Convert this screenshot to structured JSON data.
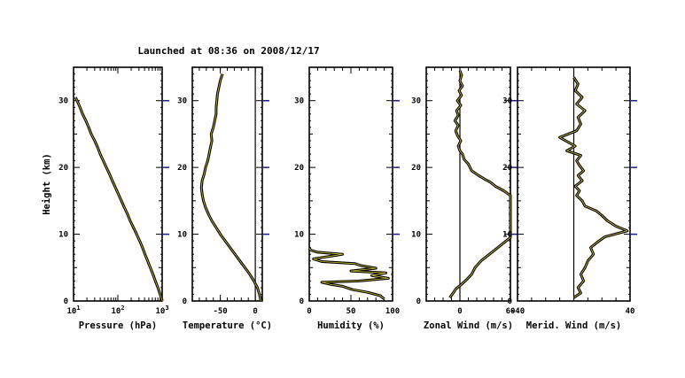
{
  "title": "Launched at 08:36  on  2008/12/17",
  "colors": {
    "axes": "#000000",
    "profile_outline": "#000000",
    "profile_highlight": "#d6c82a",
    "height_tick": "#1a1a8c",
    "background": "#ffffff"
  },
  "chart_data": [
    {
      "id": "pressure",
      "type": "line",
      "xlabel": "Pressure (hPa)",
      "ylabel": "Height (km)",
      "xscale": "log",
      "xlim": [
        10,
        1000
      ],
      "ylim": [
        0,
        35
      ],
      "xticks": [
        {
          "v": 10,
          "base": "10",
          "exp": "1"
        },
        {
          "v": 100,
          "base": "10",
          "exp": "2"
        },
        {
          "v": 1000,
          "base": "10",
          "exp": "3"
        }
      ],
      "yticks": [
        0,
        10,
        20,
        30
      ],
      "vline": null,
      "points": [
        [
          1013,
          0
        ],
        [
          900,
          1
        ],
        [
          800,
          2
        ],
        [
          700,
          3
        ],
        [
          620,
          4
        ],
        [
          540,
          5
        ],
        [
          470,
          6
        ],
        [
          410,
          7
        ],
        [
          360,
          8
        ],
        [
          310,
          9
        ],
        [
          265,
          10
        ],
        [
          225,
          11
        ],
        [
          190,
          12
        ],
        [
          165,
          13
        ],
        [
          140,
          14
        ],
        [
          120,
          15
        ],
        [
          103,
          16
        ],
        [
          88,
          17
        ],
        [
          75,
          18
        ],
        [
          65,
          19
        ],
        [
          55,
          20
        ],
        [
          47,
          21
        ],
        [
          40,
          22
        ],
        [
          35,
          23
        ],
        [
          30,
          24
        ],
        [
          25,
          25
        ],
        [
          22,
          26
        ],
        [
          19,
          27
        ],
        [
          16,
          28
        ],
        [
          14,
          29
        ],
        [
          12,
          30
        ],
        [
          11,
          30.5
        ]
      ]
    },
    {
      "id": "temperature",
      "type": "line",
      "xlabel": "Temperature (°C)",
      "xlim": [
        -90,
        10
      ],
      "ylim": [
        0,
        35
      ],
      "xticks": [
        {
          "v": -50,
          "label": "-50"
        },
        {
          "v": 0,
          "label": "0"
        }
      ],
      "yticks": [
        0,
        10,
        20,
        30
      ],
      "vline": 0,
      "points": [
        [
          8,
          0
        ],
        [
          6,
          1
        ],
        [
          3,
          2
        ],
        [
          -2,
          3
        ],
        [
          -8,
          4
        ],
        [
          -15,
          5
        ],
        [
          -22,
          6
        ],
        [
          -29,
          7
        ],
        [
          -36,
          8
        ],
        [
          -43,
          9
        ],
        [
          -50,
          10
        ],
        [
          -56,
          11
        ],
        [
          -62,
          12
        ],
        [
          -67,
          13
        ],
        [
          -71,
          14
        ],
        [
          -74,
          15
        ],
        [
          -76,
          16
        ],
        [
          -77,
          17
        ],
        [
          -76,
          18
        ],
        [
          -73,
          19
        ],
        [
          -71,
          20
        ],
        [
          -68,
          21
        ],
        [
          -66,
          22
        ],
        [
          -64,
          23
        ],
        [
          -62,
          24
        ],
        [
          -63,
          25
        ],
        [
          -60,
          26
        ],
        [
          -58,
          27
        ],
        [
          -56,
          28
        ],
        [
          -56,
          29
        ],
        [
          -55,
          30
        ],
        [
          -54,
          31
        ],
        [
          -52,
          32
        ],
        [
          -50,
          33
        ],
        [
          -47,
          34
        ]
      ]
    },
    {
      "id": "humidity",
      "type": "line",
      "xlabel": "Humidity (%)",
      "xlim": [
        0,
        100
      ],
      "ylim": [
        0,
        35
      ],
      "xticks": [
        {
          "v": 0,
          "label": "0"
        },
        {
          "v": 50,
          "label": "50"
        },
        {
          "v": 100,
          "label": "100"
        }
      ],
      "yticks": [
        0,
        10,
        20,
        30
      ],
      "vline": null,
      "points": [
        [
          90,
          0.3
        ],
        [
          85,
          0.8
        ],
        [
          70,
          1.3
        ],
        [
          52,
          1.7
        ],
        [
          40,
          2.2
        ],
        [
          25,
          2.5
        ],
        [
          15,
          2.8
        ],
        [
          60,
          3.0
        ],
        [
          95,
          3.4
        ],
        [
          75,
          3.8
        ],
        [
          92,
          4.2
        ],
        [
          50,
          4.5
        ],
        [
          80,
          4.9
        ],
        [
          62,
          5.3
        ],
        [
          55,
          5.6
        ],
        [
          15,
          5.9
        ],
        [
          5,
          6.3
        ],
        [
          20,
          6.6
        ],
        [
          40,
          7.0
        ],
        [
          10,
          7.3
        ],
        [
          2,
          7.6
        ],
        [
          0,
          7.9
        ]
      ]
    },
    {
      "id": "zonal_wind",
      "type": "line",
      "xlabel": "Zonal Wind (m/s)",
      "xlim": [
        -40,
        60
      ],
      "ylim": [
        0,
        35
      ],
      "xticks": [
        {
          "v": 0,
          "label": "0"
        },
        {
          "v": 60,
          "label": "60"
        }
      ],
      "yticks": [
        0,
        10,
        20,
        30
      ],
      "vline": 0,
      "points": [
        [
          -12,
          0.5
        ],
        [
          -8,
          1.2
        ],
        [
          -5,
          1.8
        ],
        [
          2,
          2.5
        ],
        [
          8,
          3.2
        ],
        [
          14,
          4.0
        ],
        [
          18,
          5.0
        ],
        [
          25,
          6.0
        ],
        [
          35,
          7.0
        ],
        [
          45,
          8.0
        ],
        [
          55,
          9.0
        ],
        [
          60,
          9.5
        ],
        [
          60,
          15.8
        ],
        [
          52,
          16.5
        ],
        [
          42,
          17.2
        ],
        [
          36,
          17.8
        ],
        [
          30,
          18.2
        ],
        [
          22,
          18.8
        ],
        [
          14,
          19.5
        ],
        [
          10,
          20.5
        ],
        [
          5,
          21.2
        ],
        [
          3,
          22
        ],
        [
          0,
          22.5
        ],
        [
          -2,
          23.2
        ],
        [
          1,
          24
        ],
        [
          -3,
          24.8
        ],
        [
          -5,
          25.5
        ],
        [
          -2,
          26.3
        ],
        [
          -6,
          27
        ],
        [
          -2,
          27.8
        ],
        [
          -4,
          28.5
        ],
        [
          1,
          29.3
        ],
        [
          -3,
          30
        ],
        [
          2,
          30.8
        ],
        [
          -1,
          31.5
        ],
        [
          3,
          32.2
        ],
        [
          0,
          33
        ],
        [
          2,
          33.8
        ],
        [
          0,
          34.5
        ]
      ]
    },
    {
      "id": "meridional_wind",
      "type": "line",
      "xlabel": "Merid. Wind (m/s)",
      "xlim": [
        -40,
        40
      ],
      "ylim": [
        0,
        35
      ],
      "xticks": [
        {
          "v": -40,
          "label": "-40"
        },
        {
          "v": 40,
          "label": "40"
        }
      ],
      "yticks": [
        0,
        10,
        20,
        30
      ],
      "vline": 0,
      "points": [
        [
          0,
          0.5
        ],
        [
          5,
          1.2
        ],
        [
          3,
          2.0
        ],
        [
          7,
          3.0
        ],
        [
          5,
          4.0
        ],
        [
          8,
          5.0
        ],
        [
          10,
          6.0
        ],
        [
          14,
          7.0
        ],
        [
          12,
          8.0
        ],
        [
          18,
          9.0
        ],
        [
          22,
          9.6
        ],
        [
          38,
          10.5
        ],
        [
          30,
          11.2
        ],
        [
          24,
          12.0
        ],
        [
          20,
          12.8
        ],
        [
          16,
          13.5
        ],
        [
          8,
          14.2
        ],
        [
          6,
          15.0
        ],
        [
          2,
          15.8
        ],
        [
          4,
          16.5
        ],
        [
          1,
          17.2
        ],
        [
          6,
          18.0
        ],
        [
          3,
          18.8
        ],
        [
          7,
          19.5
        ],
        [
          4,
          20.3
        ],
        [
          2,
          21.0
        ],
        [
          5,
          21.8
        ],
        [
          -5,
          22.5
        ],
        [
          1,
          23.2
        ],
        [
          -10,
          24.5
        ],
        [
          2,
          25.5
        ],
        [
          5,
          26.5
        ],
        [
          3,
          27.5
        ],
        [
          8,
          28.5
        ],
        [
          2,
          29.5
        ],
        [
          6,
          30.5
        ],
        [
          1,
          31.5
        ],
        [
          3,
          32.5
        ],
        [
          0,
          33.5
        ]
      ]
    }
  ]
}
